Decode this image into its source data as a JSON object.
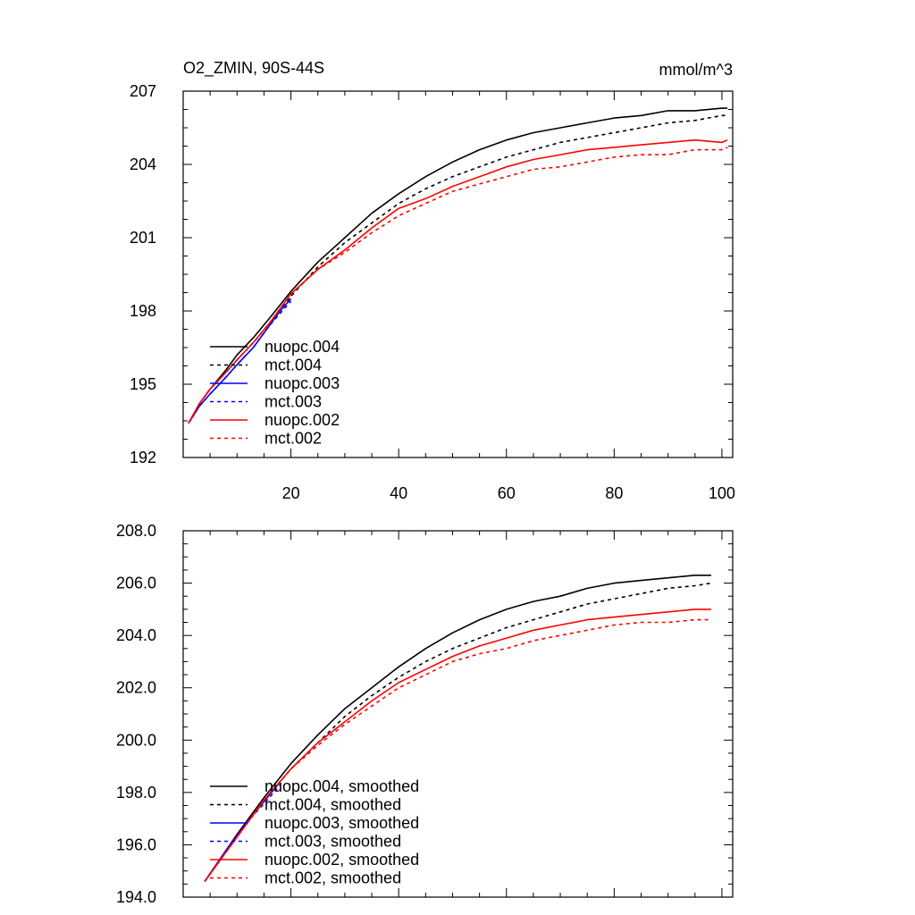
{
  "chart_data": [
    {
      "type": "line",
      "title": "O2_ZMIN, 90S-44S",
      "units": "mmol/m^3",
      "xlim": [
        0,
        102
      ],
      "ylim": [
        192,
        207
      ],
      "xticks": [
        20,
        40,
        60,
        80,
        100
      ],
      "xtick_labels": [
        "20",
        "40",
        "60",
        "80",
        "100"
      ],
      "yticks": [
        192,
        195,
        198,
        201,
        204,
        207
      ],
      "ytick_labels": [
        "192",
        "195",
        "198",
        "201",
        "204",
        "207"
      ],
      "grid": false,
      "legend_position": "lower-left",
      "series": [
        {
          "name": "nuopc.004",
          "color": "#000000",
          "dash": "solid",
          "x": [
            1,
            3,
            5,
            8,
            10,
            13,
            16,
            20,
            25,
            30,
            35,
            40,
            45,
            50,
            55,
            60,
            65,
            70,
            75,
            80,
            85,
            90,
            95,
            100,
            101
          ],
          "y": [
            193.4,
            194.2,
            194.8,
            195.6,
            196.2,
            196.9,
            197.7,
            198.8,
            200.0,
            201.0,
            202.0,
            202.8,
            203.5,
            204.1,
            204.6,
            205.0,
            205.3,
            205.5,
            205.7,
            205.9,
            206.0,
            206.2,
            206.2,
            206.3,
            206.3
          ]
        },
        {
          "name": "mct.004",
          "color": "#000000",
          "dash": "dashed",
          "x": [
            1,
            3,
            5,
            8,
            10,
            13,
            16,
            20,
            25,
            30,
            35,
            40,
            45,
            50,
            55,
            60,
            65,
            70,
            75,
            80,
            85,
            90,
            95,
            100,
            101
          ],
          "y": [
            193.4,
            194.2,
            194.8,
            195.5,
            196.0,
            196.7,
            197.5,
            198.6,
            199.8,
            200.8,
            201.6,
            202.4,
            203.0,
            203.5,
            203.9,
            204.3,
            204.6,
            204.9,
            205.1,
            205.3,
            205.5,
            205.7,
            205.8,
            206.0,
            206.0
          ]
        },
        {
          "name": "nuopc.003",
          "color": "#0000ff",
          "dash": "solid",
          "x": [
            1,
            3,
            5,
            8,
            10,
            13,
            16,
            18,
            20
          ],
          "y": [
            193.4,
            194.1,
            194.6,
            195.3,
            195.8,
            196.5,
            197.4,
            198.0,
            198.5
          ]
        },
        {
          "name": "mct.003",
          "color": "#0000ff",
          "dash": "dashed",
          "x": [
            1,
            3,
            5,
            8,
            10,
            13,
            16,
            18,
            20
          ],
          "y": [
            193.4,
            194.1,
            194.6,
            195.3,
            195.8,
            196.5,
            197.4,
            197.9,
            198.4
          ]
        },
        {
          "name": "nuopc.002",
          "color": "#ff0000",
          "dash": "solid",
          "x": [
            1,
            3,
            5,
            8,
            10,
            13,
            16,
            20,
            25,
            30,
            35,
            40,
            45,
            50,
            55,
            60,
            65,
            70,
            75,
            80,
            85,
            90,
            95,
            100,
            101
          ],
          "y": [
            193.4,
            194.2,
            194.8,
            195.5,
            196.0,
            196.7,
            197.5,
            198.7,
            199.7,
            200.5,
            201.4,
            202.2,
            202.6,
            203.1,
            203.5,
            203.9,
            204.2,
            204.4,
            204.6,
            204.7,
            204.8,
            204.9,
            205.0,
            204.9,
            205.0
          ]
        },
        {
          "name": "mct.002",
          "color": "#ff0000",
          "dash": "dashed",
          "x": [
            1,
            3,
            5,
            8,
            10,
            13,
            16,
            20,
            25,
            30,
            35,
            40,
            45,
            50,
            55,
            60,
            65,
            70,
            75,
            80,
            85,
            90,
            95,
            100,
            101
          ],
          "y": [
            193.4,
            194.2,
            194.8,
            195.5,
            196.0,
            196.7,
            197.5,
            198.7,
            199.7,
            200.4,
            201.2,
            201.9,
            202.4,
            202.9,
            203.2,
            203.5,
            203.8,
            203.9,
            204.1,
            204.3,
            204.4,
            204.4,
            204.6,
            204.6,
            204.7
          ]
        }
      ]
    },
    {
      "type": "line",
      "title": "",
      "xlim": [
        0,
        102
      ],
      "ylim": [
        194,
        208
      ],
      "xticks": [
        20,
        40,
        60,
        80,
        100
      ],
      "xtick_labels": [],
      "yticks": [
        194,
        196,
        198,
        200,
        202,
        204,
        206,
        208
      ],
      "ytick_labels": [
        "194.0",
        "196.0",
        "198.0",
        "200.0",
        "202.0",
        "204.0",
        "206.0",
        "208.0"
      ],
      "grid": false,
      "legend_position": "lower-left",
      "series": [
        {
          "name": "nuopc.004, smoothed",
          "color": "#000000",
          "dash": "solid",
          "x": [
            4,
            10,
            15,
            20,
            25,
            30,
            35,
            40,
            45,
            50,
            55,
            60,
            65,
            70,
            75,
            80,
            85,
            90,
            95,
            98
          ],
          "y": [
            194.6,
            196.4,
            197.8,
            199.1,
            200.2,
            201.2,
            202.0,
            202.8,
            203.5,
            204.1,
            204.6,
            205.0,
            205.3,
            205.5,
            205.8,
            206.0,
            206.1,
            206.2,
            206.3,
            206.3
          ]
        },
        {
          "name": "mct.004, smoothed",
          "color": "#000000",
          "dash": "dashed",
          "x": [
            4,
            10,
            15,
            20,
            25,
            30,
            35,
            40,
            45,
            50,
            55,
            60,
            65,
            70,
            75,
            80,
            85,
            90,
            95,
            98
          ],
          "y": [
            194.6,
            196.3,
            197.7,
            198.9,
            199.9,
            200.9,
            201.7,
            202.4,
            203.0,
            203.5,
            203.9,
            204.3,
            204.6,
            204.9,
            205.2,
            205.4,
            205.6,
            205.8,
            205.9,
            206.0
          ]
        },
        {
          "name": "nuopc.003, smoothed",
          "color": "#0000ff",
          "dash": "solid",
          "x": [
            4,
            8,
            12,
            16,
            18
          ],
          "y": [
            194.6,
            195.8,
            196.9,
            197.9,
            198.4
          ]
        },
        {
          "name": "mct.003, smoothed",
          "color": "#0000ff",
          "dash": "dashed",
          "x": [
            4,
            8,
            12,
            16,
            18
          ],
          "y": [
            194.6,
            195.8,
            196.9,
            197.8,
            198.3
          ]
        },
        {
          "name": "nuopc.002, smoothed",
          "color": "#ff0000",
          "dash": "solid",
          "x": [
            4,
            10,
            15,
            20,
            25,
            30,
            35,
            40,
            45,
            50,
            55,
            60,
            65,
            70,
            75,
            80,
            85,
            90,
            95,
            98
          ],
          "y": [
            194.6,
            196.3,
            197.7,
            198.9,
            199.9,
            200.7,
            201.5,
            202.2,
            202.7,
            203.2,
            203.6,
            203.9,
            204.2,
            204.4,
            204.6,
            204.7,
            204.8,
            204.9,
            205.0,
            205.0
          ]
        },
        {
          "name": "mct.002, smoothed",
          "color": "#ff0000",
          "dash": "dashed",
          "x": [
            4,
            10,
            15,
            20,
            25,
            30,
            35,
            40,
            45,
            50,
            55,
            60,
            65,
            70,
            75,
            80,
            85,
            90,
            95,
            98
          ],
          "y": [
            194.6,
            196.3,
            197.7,
            198.9,
            199.8,
            200.6,
            201.3,
            202.0,
            202.5,
            203.0,
            203.3,
            203.5,
            203.8,
            204.0,
            204.2,
            204.4,
            204.5,
            204.5,
            204.6,
            204.6
          ]
        }
      ]
    }
  ]
}
